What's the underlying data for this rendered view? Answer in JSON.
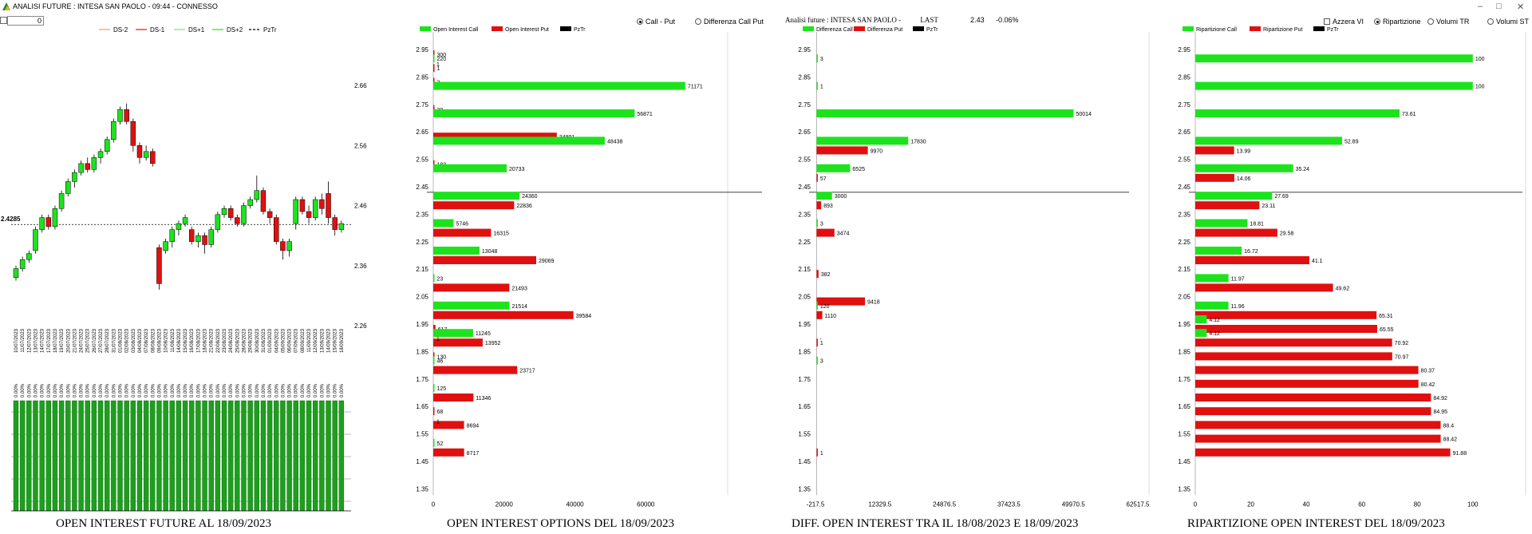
{
  "window": {
    "title": "ANALISI FUTURE : INTESA SAN PAOLO - 09:44 - CONNESSO",
    "controls": [
      "–",
      "□",
      "✕"
    ]
  },
  "spin": {
    "value": "0"
  },
  "header_info": {
    "label": "Analisi future : INTESA SAN PAOLO -",
    "last_label": "LAST",
    "last_value": "2.43",
    "change": "-0.06%"
  },
  "radios": {
    "call_put": "Call - Put",
    "diff_call_put": "Differenza Call Put",
    "azzera": "Azzera VI",
    "ripartizione": "Ripartizione",
    "volumi_tr": "Volumi TR",
    "volumi_st": "Volumi ST"
  },
  "titles": {
    "future": "OPEN INTEREST FUTURE AL 18/09/2023",
    "options": "OPEN INTEREST OPTIONS DEL 18/09/2023",
    "diff": "DIFF. OPEN INTEREST TRA IL 18/08/2023 E 18/09/2023",
    "rip": "RIPARTIZIONE OPEN INTEREST DEL 18/09/2023"
  },
  "colors": {
    "green": "#1de31d",
    "red": "#e01010",
    "black": "#000000",
    "orange": "#f0a050"
  },
  "chart_data": [
    {
      "type": "candlestick",
      "legend": [
        "DS-2",
        "DS-1",
        "DS+1",
        "DS+2",
        "PzTr"
      ],
      "y_ticks": [
        "2.66",
        "2.56",
        "2.46",
        "2.36",
        "2.26"
      ],
      "ylim": [
        2.26,
        2.68
      ],
      "current_price_label": "2.4285",
      "dates": [
        "10/07/2023",
        "11/07/2023",
        "12/07/2023",
        "13/07/2023",
        "14/07/2023",
        "17/07/2023",
        "18/07/2023",
        "19/07/2023",
        "20/07/2023",
        "21/07/2023",
        "24/07/2023",
        "25/07/2023",
        "26/07/2023",
        "27/07/2023",
        "28/07/2023",
        "31/07/2023",
        "01/08/2023",
        "02/08/2023",
        "03/08/2023",
        "04/08/2023",
        "07/08/2023",
        "08/08/2023",
        "09/08/2023",
        "10/08/2023",
        "11/08/2023",
        "14/08/2023",
        "15/08/2023",
        "16/08/2023",
        "17/08/2023",
        "18/08/2023",
        "21/08/2023",
        "22/08/2023",
        "23/08/2023",
        "24/08/2023",
        "25/08/2023",
        "28/08/2023",
        "29/08/2023",
        "30/08/2023",
        "31/08/2023",
        "01/09/2023",
        "04/09/2023",
        "05/09/2023",
        "06/09/2023",
        "07/09/2023",
        "08/09/2023",
        "11/09/2023",
        "12/09/2023",
        "13/09/2023",
        "14/09/2023",
        "15/09/2023",
        "18/09/2023"
      ],
      "candles": [
        [
          2.34,
          2.355,
          2.335,
          2.36
        ],
        [
          2.355,
          2.37,
          2.35,
          2.375
        ],
        [
          2.37,
          2.38,
          2.365,
          2.385
        ],
        [
          2.385,
          2.42,
          2.38,
          2.425
        ],
        [
          2.42,
          2.44,
          2.415,
          2.445
        ],
        [
          2.44,
          2.425,
          2.42,
          2.445
        ],
        [
          2.425,
          2.455,
          2.42,
          2.46
        ],
        [
          2.455,
          2.48,
          2.45,
          2.485
        ],
        [
          2.48,
          2.5,
          2.475,
          2.505
        ],
        [
          2.5,
          2.515,
          2.49,
          2.52
        ],
        [
          2.515,
          2.53,
          2.51,
          2.535
        ],
        [
          2.53,
          2.52,
          2.515,
          2.54
        ],
        [
          2.52,
          2.54,
          2.515,
          2.545
        ],
        [
          2.54,
          2.55,
          2.53,
          2.555
        ],
        [
          2.55,
          2.57,
          2.545,
          2.575
        ],
        [
          2.57,
          2.6,
          2.565,
          2.605
        ],
        [
          2.6,
          2.62,
          2.595,
          2.625
        ],
        [
          2.62,
          2.6,
          2.595,
          2.63
        ],
        [
          2.6,
          2.56,
          2.55,
          2.605
        ],
        [
          2.56,
          2.54,
          2.53,
          2.565
        ],
        [
          2.54,
          2.55,
          2.535,
          2.56
        ],
        [
          2.55,
          2.53,
          2.525,
          2.555
        ],
        [
          2.39,
          2.33,
          2.32,
          2.395
        ],
        [
          2.385,
          2.4,
          2.38,
          2.405
        ],
        [
          2.4,
          2.42,
          2.39,
          2.425
        ],
        [
          2.42,
          2.43,
          2.41,
          2.435
        ],
        [
          2.43,
          2.44,
          2.425,
          2.445
        ],
        [
          2.42,
          2.4,
          2.395,
          2.425
        ],
        [
          2.4,
          2.41,
          2.39,
          2.415
        ],
        [
          2.41,
          2.395,
          2.38,
          2.415
        ],
        [
          2.395,
          2.42,
          2.39,
          2.425
        ],
        [
          2.42,
          2.445,
          2.415,
          2.45
        ],
        [
          2.445,
          2.455,
          2.44,
          2.46
        ],
        [
          2.455,
          2.44,
          2.435,
          2.46
        ],
        [
          2.44,
          2.43,
          2.425,
          2.445
        ],
        [
          2.43,
          2.46,
          2.425,
          2.465
        ],
        [
          2.46,
          2.47,
          2.455,
          2.475
        ],
        [
          2.47,
          2.485,
          2.465,
          2.51
        ],
        [
          2.485,
          2.45,
          2.445,
          2.49
        ],
        [
          2.45,
          2.44,
          2.43,
          2.455
        ],
        [
          2.44,
          2.4,
          2.395,
          2.445
        ],
        [
          2.4,
          2.385,
          2.37,
          2.405
        ],
        [
          2.385,
          2.4,
          2.375,
          2.405
        ],
        [
          2.43,
          2.47,
          2.42,
          2.475
        ],
        [
          2.47,
          2.45,
          2.445,
          2.475
        ],
        [
          2.45,
          2.44,
          2.43,
          2.46
        ],
        [
          2.44,
          2.47,
          2.435,
          2.475
        ],
        [
          2.47,
          2.455,
          2.445,
          2.48
        ],
        [
          2.48,
          2.44,
          2.43,
          2.5
        ],
        [
          2.44,
          2.42,
          2.41,
          2.445
        ],
        [
          2.42,
          2.43,
          2.415,
          2.435
        ]
      ],
      "bottom_label": "0.00%"
    },
    {
      "type": "bar",
      "orientation": "horizontal",
      "legend": [
        "Open Interest Call",
        "Open Interest Put",
        "PzTr"
      ],
      "strikes": [
        2.95,
        2.9,
        2.85,
        2.8,
        2.75,
        2.7,
        2.65,
        2.6,
        2.55,
        2.5,
        2.45,
        2.4,
        2.35,
        2.3,
        2.25,
        2.2,
        2.15,
        2.1,
        2.05,
        2.0,
        1.95,
        1.9,
        1.85,
        1.8,
        1.75,
        1.7,
        1.65,
        1.6,
        1.55,
        1.5,
        1.45,
        1.4,
        1.35
      ],
      "y_ticks": [
        "2.95",
        "2.85",
        "2.75",
        "2.65",
        "2.55",
        "2.45",
        "2.35",
        "2.25",
        "2.15",
        "2.05",
        "1.95",
        "1.85",
        "1.75",
        "1.65",
        "1.55",
        "1.45",
        "1.35"
      ],
      "call": [
        null,
        220,
        null,
        71171,
        null,
        56871,
        null,
        48438,
        null,
        20733,
        null,
        24360,
        null,
        5746,
        null,
        13048,
        null,
        23,
        null,
        21514,
        null,
        11245,
        null,
        46,
        null,
        125,
        null,
        null,
        null,
        52,
        null,
        null,
        null
      ],
      "call_labels": [
        null,
        "220",
        null,
        "71171",
        null,
        "56871",
        null,
        "48438",
        null,
        "20733",
        null,
        "24360",
        null,
        "5746",
        null,
        "13048",
        null,
        "23",
        null,
        "21514",
        null,
        "11245",
        null,
        "46",
        null,
        "125",
        null,
        null,
        null,
        "52",
        null,
        null,
        null
      ],
      "put": [
        300,
        1,
        3,
        null,
        20,
        null,
        34891,
        null,
        183,
        null,
        null,
        22836,
        null,
        16315,
        null,
        29069,
        null,
        21493,
        null,
        39584,
        617,
        13952,
        130,
        23717,
        null,
        11346,
        68,
        8694,
        null,
        8717,
        null,
        null,
        null
      ],
      "put_labels": [
        "300",
        "1",
        "3",
        null,
        "20",
        null,
        "34891",
        null,
        "183",
        null,
        null,
        "22836",
        null,
        "16315",
        null,
        "29069",
        null,
        "21493",
        null,
        "39584",
        "617",
        "13952",
        "130",
        "23717",
        null,
        "11346",
        "68",
        "8694",
        null,
        "8717",
        null,
        null,
        null
      ],
      "extra_labels": [
        {
          "row": 1,
          "text": "1"
        },
        {
          "row": 27,
          "text": "1"
        },
        {
          "row": 21,
          "text": "1"
        }
      ],
      "x_ticks": [
        "0",
        "20000",
        "40000",
        "60000"
      ],
      "xlim": [
        0,
        80000
      ]
    },
    {
      "type": "bar",
      "orientation": "horizontal",
      "legend": [
        "Differenza Call",
        "Differenza Put",
        "PzTr"
      ],
      "strikes": [
        2.95,
        2.9,
        2.85,
        2.8,
        2.75,
        2.7,
        2.65,
        2.6,
        2.55,
        2.5,
        2.45,
        2.4,
        2.35,
        2.3,
        2.25,
        2.2,
        2.15,
        2.1,
        2.05,
        2.0,
        1.95,
        1.9,
        1.85,
        1.8,
        1.75,
        1.7,
        1.65,
        1.6,
        1.55,
        1.5,
        1.45,
        1.4,
        1.35
      ],
      "y_ticks": [
        "2.95",
        "2.85",
        "2.75",
        "2.65",
        "2.55",
        "2.45",
        "2.35",
        "2.25",
        "2.15",
        "2.05",
        "1.95",
        "1.85",
        "1.75",
        "1.65",
        "1.55",
        "1.45",
        "1.35"
      ],
      "call": [
        null,
        3,
        null,
        1,
        null,
        50014,
        null,
        17830,
        null,
        6525,
        null,
        3000,
        null,
        3,
        null,
        null,
        null,
        null,
        null,
        120,
        null,
        null,
        null,
        3,
        null,
        null,
        null,
        null,
        null,
        null,
        null,
        null,
        null
      ],
      "call_labels": [
        null,
        "3",
        null,
        "1",
        null,
        "50014",
        null,
        "17830",
        null,
        "6525",
        null,
        "3000",
        null,
        "3",
        null,
        null,
        null,
        null,
        null,
        "120",
        null,
        null,
        null,
        "3",
        null,
        null,
        null,
        null,
        null,
        null,
        null,
        null,
        null
      ],
      "put": [
        null,
        null,
        null,
        null,
        null,
        null,
        null,
        9970,
        null,
        57,
        null,
        893,
        null,
        3474,
        null,
        null,
        382,
        null,
        9418,
        1110,
        null,
        1,
        null,
        null,
        null,
        null,
        null,
        null,
        null,
        1,
        null,
        null,
        null
      ],
      "put_labels": [
        null,
        null,
        null,
        null,
        null,
        null,
        null,
        "9970",
        null,
        "57",
        null,
        "893",
        null,
        "3474",
        null,
        null,
        "382",
        null,
        "9418",
        "1110",
        null,
        "1",
        null,
        null,
        null,
        null,
        null,
        null,
        null,
        "1",
        null,
        null,
        null
      ],
      "extra_labels": [
        {
          "row": 21,
          "text": "-"
        }
      ],
      "x_ticks": [
        "-217.5",
        "12329.5",
        "24876.5",
        "37423.5",
        "49970.5",
        "62517.5"
      ],
      "xlim": [
        -217.5,
        62517.5
      ]
    },
    {
      "type": "bar",
      "orientation": "horizontal",
      "legend": [
        "Ripartizione Call",
        "Ripartizione Put",
        "PzTr"
      ],
      "strikes": [
        2.95,
        2.9,
        2.85,
        2.8,
        2.75,
        2.7,
        2.65,
        2.6,
        2.55,
        2.5,
        2.45,
        2.4,
        2.35,
        2.3,
        2.25,
        2.2,
        2.15,
        2.1,
        2.05,
        2.0,
        1.95,
        1.9,
        1.85,
        1.8,
        1.75,
        1.7,
        1.65,
        1.6,
        1.55,
        1.5,
        1.45,
        1.4,
        1.35
      ],
      "y_ticks": [
        "2.95",
        "2.85",
        "2.75",
        "2.65",
        "2.55",
        "2.45",
        "2.35",
        "2.25",
        "2.15",
        "2.05",
        "1.95",
        "1.85",
        "1.75",
        "1.65",
        "1.55",
        "1.45",
        "1.35"
      ],
      "call": [
        null,
        100,
        null,
        100,
        null,
        73.61,
        null,
        52.89,
        null,
        35.24,
        null,
        27.69,
        null,
        18.81,
        null,
        16.72,
        null,
        11.97,
        null,
        11.96,
        4.12,
        4.12,
        null,
        null,
        null,
        null,
        null,
        null,
        null,
        null,
        null,
        null,
        null
      ],
      "call_labels": [
        null,
        "100",
        null,
        "100",
        null,
        "73.61",
        null,
        "52.89",
        null,
        "35.24",
        null,
        "27.69",
        null,
        "18.81",
        null,
        "16.72",
        null,
        "11.97",
        null,
        "11.96",
        "4.12",
        "4.12",
        null,
        null,
        null,
        null,
        null,
        null,
        null,
        null,
        null,
        null,
        null
      ],
      "put": [
        null,
        null,
        null,
        null,
        null,
        null,
        null,
        13.99,
        null,
        14.06,
        null,
        23.11,
        null,
        29.58,
        null,
        41.1,
        null,
        49.62,
        null,
        65.31,
        65.55,
        70.92,
        70.97,
        80.37,
        80.42,
        84.92,
        84.95,
        88.4,
        88.42,
        91.88,
        null,
        null,
        null
      ],
      "put_labels": [
        null,
        null,
        null,
        null,
        null,
        null,
        null,
        "13.99",
        null,
        "14.06",
        null,
        "23.11",
        null,
        "29.58",
        null,
        "41.1",
        null,
        "49.62",
        null,
        "65.31",
        "65.55",
        "70.92",
        "70.97",
        "80.37",
        "80.42",
        "84.92",
        "84.95",
        "88.4",
        "88.42",
        "91.88",
        null,
        null,
        null
      ],
      "extra_labels": [],
      "x_ticks": [
        "0",
        "20",
        "40",
        "60",
        "80",
        "100"
      ],
      "xlim": [
        0,
        115
      ]
    }
  ]
}
